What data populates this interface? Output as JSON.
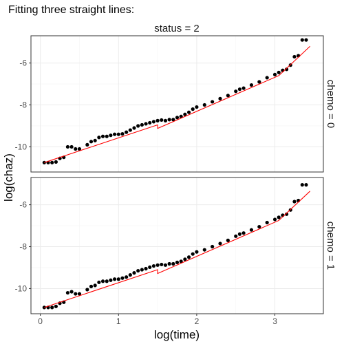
{
  "chart_data": {
    "type": "scatter",
    "title": "Fitting three straight lines:",
    "xlabel": "log(time)",
    "ylabel": "log(chaz)",
    "column_facet": "status = 2",
    "xlim": [
      -0.12,
      3.62
    ],
    "ylim": [
      -11.2,
      -4.7
    ],
    "x_ticks": [
      0,
      1,
      2,
      3
    ],
    "y_ticks": [
      -10,
      -8,
      -6
    ],
    "grid": true,
    "panels": [
      {
        "facet_label": "chemo = 0",
        "series": [
          {
            "kind": "points",
            "color": "#000000",
            "x": [
              0.05,
              0.1,
              0.15,
              0.2,
              0.25,
              0.3,
              0.35,
              0.4,
              0.45,
              0.5,
              0.6,
              0.65,
              0.7,
              0.75,
              0.8,
              0.85,
              0.9,
              0.95,
              1.0,
              1.05,
              1.1,
              1.15,
              1.2,
              1.25,
              1.3,
              1.35,
              1.4,
              1.45,
              1.5,
              1.55,
              1.6,
              1.65,
              1.7,
              1.75,
              1.8,
              1.85,
              1.9,
              1.95,
              2.0,
              2.1,
              2.2,
              2.3,
              2.4,
              2.5,
              2.55,
              2.6,
              2.7,
              2.8,
              2.9,
              3.0,
              3.05,
              3.1,
              3.15,
              3.2,
              3.25,
              3.3,
              3.35,
              3.4
            ],
            "y": [
              -10.75,
              -10.75,
              -10.75,
              -10.72,
              -10.55,
              -10.5,
              -10.0,
              -10.0,
              -10.1,
              -10.1,
              -9.9,
              -9.75,
              -9.7,
              -9.55,
              -9.5,
              -9.5,
              -9.45,
              -9.4,
              -9.4,
              -9.38,
              -9.3,
              -9.2,
              -9.1,
              -9.0,
              -8.95,
              -8.9,
              -8.85,
              -8.8,
              -8.75,
              -8.72,
              -8.75,
              -8.7,
              -8.7,
              -8.6,
              -8.55,
              -8.45,
              -8.35,
              -8.2,
              -8.1,
              -8.0,
              -7.85,
              -7.7,
              -7.55,
              -7.35,
              -7.25,
              -7.2,
              -7.05,
              -6.9,
              -6.7,
              -6.55,
              -6.45,
              -6.35,
              -6.3,
              -6.1,
              -5.7,
              -5.65,
              -4.9,
              -4.9
            ]
          },
          {
            "kind": "line",
            "color": "#ff0000",
            "x": [
              0.05,
              1.5,
              1.5,
              3.05,
              3.05,
              3.45
            ],
            "y": [
              -10.75,
              -8.95,
              -9.12,
              -6.6,
              -6.6,
              -5.2
            ]
          }
        ]
      },
      {
        "facet_label": "chemo = 1",
        "series": [
          {
            "kind": "points",
            "color": "#000000",
            "x": [
              0.05,
              0.1,
              0.15,
              0.2,
              0.25,
              0.3,
              0.35,
              0.4,
              0.45,
              0.5,
              0.6,
              0.65,
              0.7,
              0.75,
              0.8,
              0.85,
              0.9,
              0.95,
              1.0,
              1.05,
              1.1,
              1.15,
              1.2,
              1.25,
              1.3,
              1.35,
              1.4,
              1.45,
              1.5,
              1.55,
              1.6,
              1.65,
              1.7,
              1.75,
              1.8,
              1.85,
              1.9,
              1.95,
              2.0,
              2.1,
              2.2,
              2.3,
              2.4,
              2.5,
              2.55,
              2.6,
              2.7,
              2.8,
              2.9,
              3.0,
              3.05,
              3.1,
              3.15,
              3.2,
              3.25,
              3.3,
              3.35,
              3.4
            ],
            "y": [
              -10.9,
              -10.9,
              -10.9,
              -10.85,
              -10.7,
              -10.65,
              -10.2,
              -10.15,
              -10.25,
              -10.25,
              -10.05,
              -9.9,
              -9.85,
              -9.7,
              -9.65,
              -9.65,
              -9.6,
              -9.55,
              -9.55,
              -9.5,
              -9.45,
              -9.35,
              -9.25,
              -9.15,
              -9.1,
              -9.05,
              -8.98,
              -8.92,
              -8.88,
              -8.85,
              -8.88,
              -8.82,
              -8.82,
              -8.75,
              -8.7,
              -8.6,
              -8.5,
              -8.35,
              -8.25,
              -8.15,
              -8.0,
              -7.85,
              -7.7,
              -7.5,
              -7.4,
              -7.35,
              -7.2,
              -7.05,
              -6.85,
              -6.7,
              -6.6,
              -6.5,
              -6.45,
              -6.25,
              -5.85,
              -5.8,
              -5.05,
              -5.05
            ]
          },
          {
            "kind": "line",
            "color": "#ff0000",
            "x": [
              0.05,
              1.5,
              1.5,
              3.05,
              3.05,
              3.45
            ],
            "y": [
              -10.9,
              -9.1,
              -9.28,
              -6.75,
              -6.75,
              -5.35
            ]
          }
        ]
      }
    ]
  }
}
